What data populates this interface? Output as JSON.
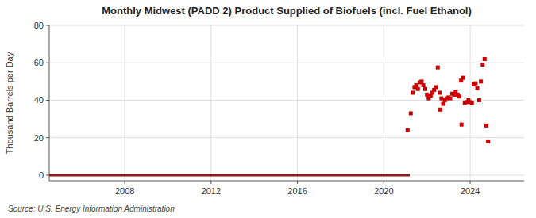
{
  "chart_data": {
    "type": "scatter",
    "title": "Monthly Midwest (PADD 2) Product Supplied of Biofuels (incl. Fuel Ethanol)",
    "ylabel": "Thousand Barrels per Day",
    "annotations": [
      "Source: U.S. Energy Information Administration"
    ],
    "xlim": [
      2004.5,
      2026.5
    ],
    "ylim": [
      -3,
      80
    ],
    "xticks": [
      2008,
      2012,
      2016,
      2020,
      2024
    ],
    "yticks": [
      0,
      20,
      40,
      60,
      80
    ],
    "grid": true,
    "series": [
      {
        "type": "line",
        "color": "#8b1a1a",
        "line_style": "solid",
        "x": [
          2004.5,
          2021.2
        ],
        "values": [
          0,
          0
        ]
      },
      {
        "type": "scatter",
        "color": "#cc0000",
        "marker": "square",
        "x": [
          2021.25,
          2021.33,
          2021.42,
          2021.5,
          2021.58,
          2021.67,
          2021.75,
          2021.83,
          2021.92,
          2022.0,
          2022.08,
          2022.17,
          2022.25,
          2022.33,
          2022.42,
          2022.5,
          2022.58,
          2022.67,
          2022.75,
          2022.83,
          2022.92,
          2023.0,
          2023.08,
          2023.17,
          2023.25,
          2023.33,
          2023.42,
          2023.5,
          2023.58,
          2023.67,
          2023.75,
          2023.83,
          2023.92,
          2024.0,
          2024.08,
          2024.17,
          2024.25,
          2024.33,
          2024.42,
          2024.5,
          2024.58,
          2024.67,
          2024.75,
          2024.83,
          2021.1,
          2022.62,
          2023.6
        ],
        "values": [
          33.0,
          44.0,
          47.0,
          48.0,
          46.0,
          49.5,
          50.0,
          48.0,
          46.0,
          43.0,
          41.0,
          42.5,
          44.0,
          45.5,
          47.0,
          57.5,
          44.0,
          41.0,
          38.0,
          40.0,
          41.0,
          41.5,
          41.0,
          43.5,
          43.0,
          44.5,
          43.0,
          42.0,
          50.5,
          52.0,
          38.5,
          39.0,
          40.0,
          39.0,
          38.5,
          48.5,
          49.0,
          46.5,
          40.0,
          50.0,
          59.0,
          62.0,
          26.5,
          18.0,
          24.0,
          35.0,
          27.0
        ]
      }
    ]
  }
}
